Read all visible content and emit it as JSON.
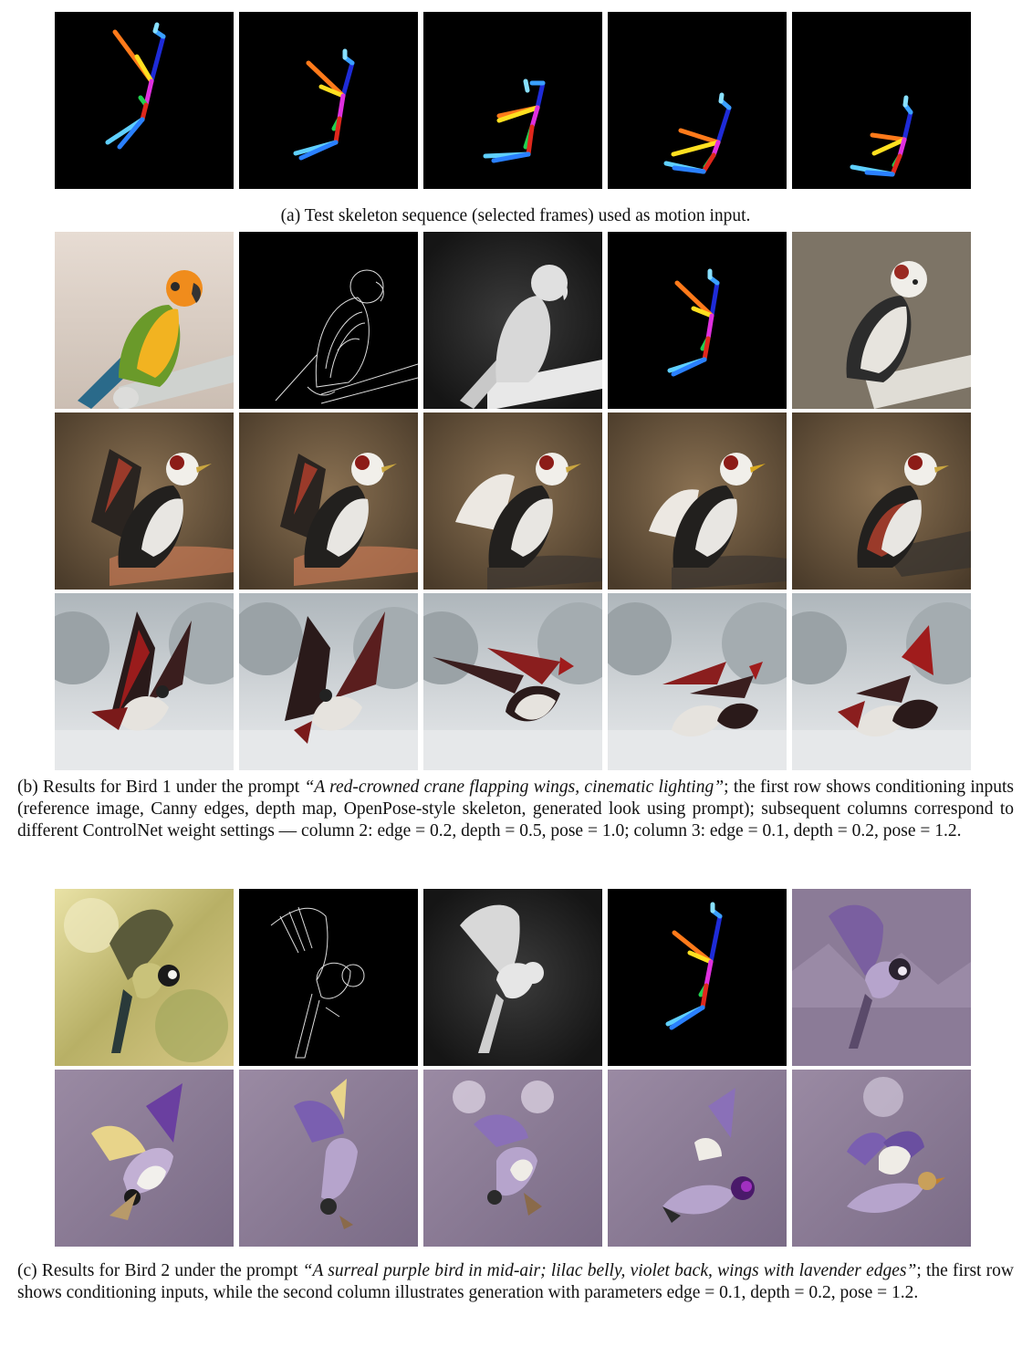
{
  "figure_a": {
    "caption": "(a) Test skeleton sequence (selected frames) used as motion input.",
    "frames": [
      "skeleton-frame-1",
      "skeleton-frame-2",
      "skeleton-frame-3",
      "skeleton-frame-4",
      "skeleton-frame-5"
    ]
  },
  "figure_b": {
    "label": "(b) Results for Bird 1 under the prompt ",
    "prompt": "“A red-crowned crane flapping wings, cinematic lighting”",
    "rest": "; the first row shows conditioning inputs (reference image, Canny edges, depth map, OpenPose-style skeleton, generated look using prompt); subsequent columns correspond to different ControlNet weight settings — column 2: edge = 0.2, depth = 0.5, pose = 1.0; column 3: edge = 0.1, depth = 0.2, pose = 1.2."
  },
  "figure_c": {
    "label": "(c) Results for Bird 2 under the prompt ",
    "prompt": "“A surreal purple bird in mid-air; lilac belly, violet back, wings with lavender edges”",
    "rest": "; the first row shows conditioning inputs, while the second column illustrates generation with parameters edge = 0.1, depth = 0.2, pose = 1.2."
  },
  "colors": {
    "parrot_yellow": "#f2b321",
    "parrot_green": "#6a9a2a",
    "sepia_bg": "#6f5a3e",
    "snow": "#d9dde0",
    "lilac": "#8d7c96",
    "skeleton_blue": "#1e2bd8",
    "skeleton_red": "#e0281c",
    "skeleton_magenta": "#e030e0",
    "skeleton_orange": "#ff7a1a"
  }
}
